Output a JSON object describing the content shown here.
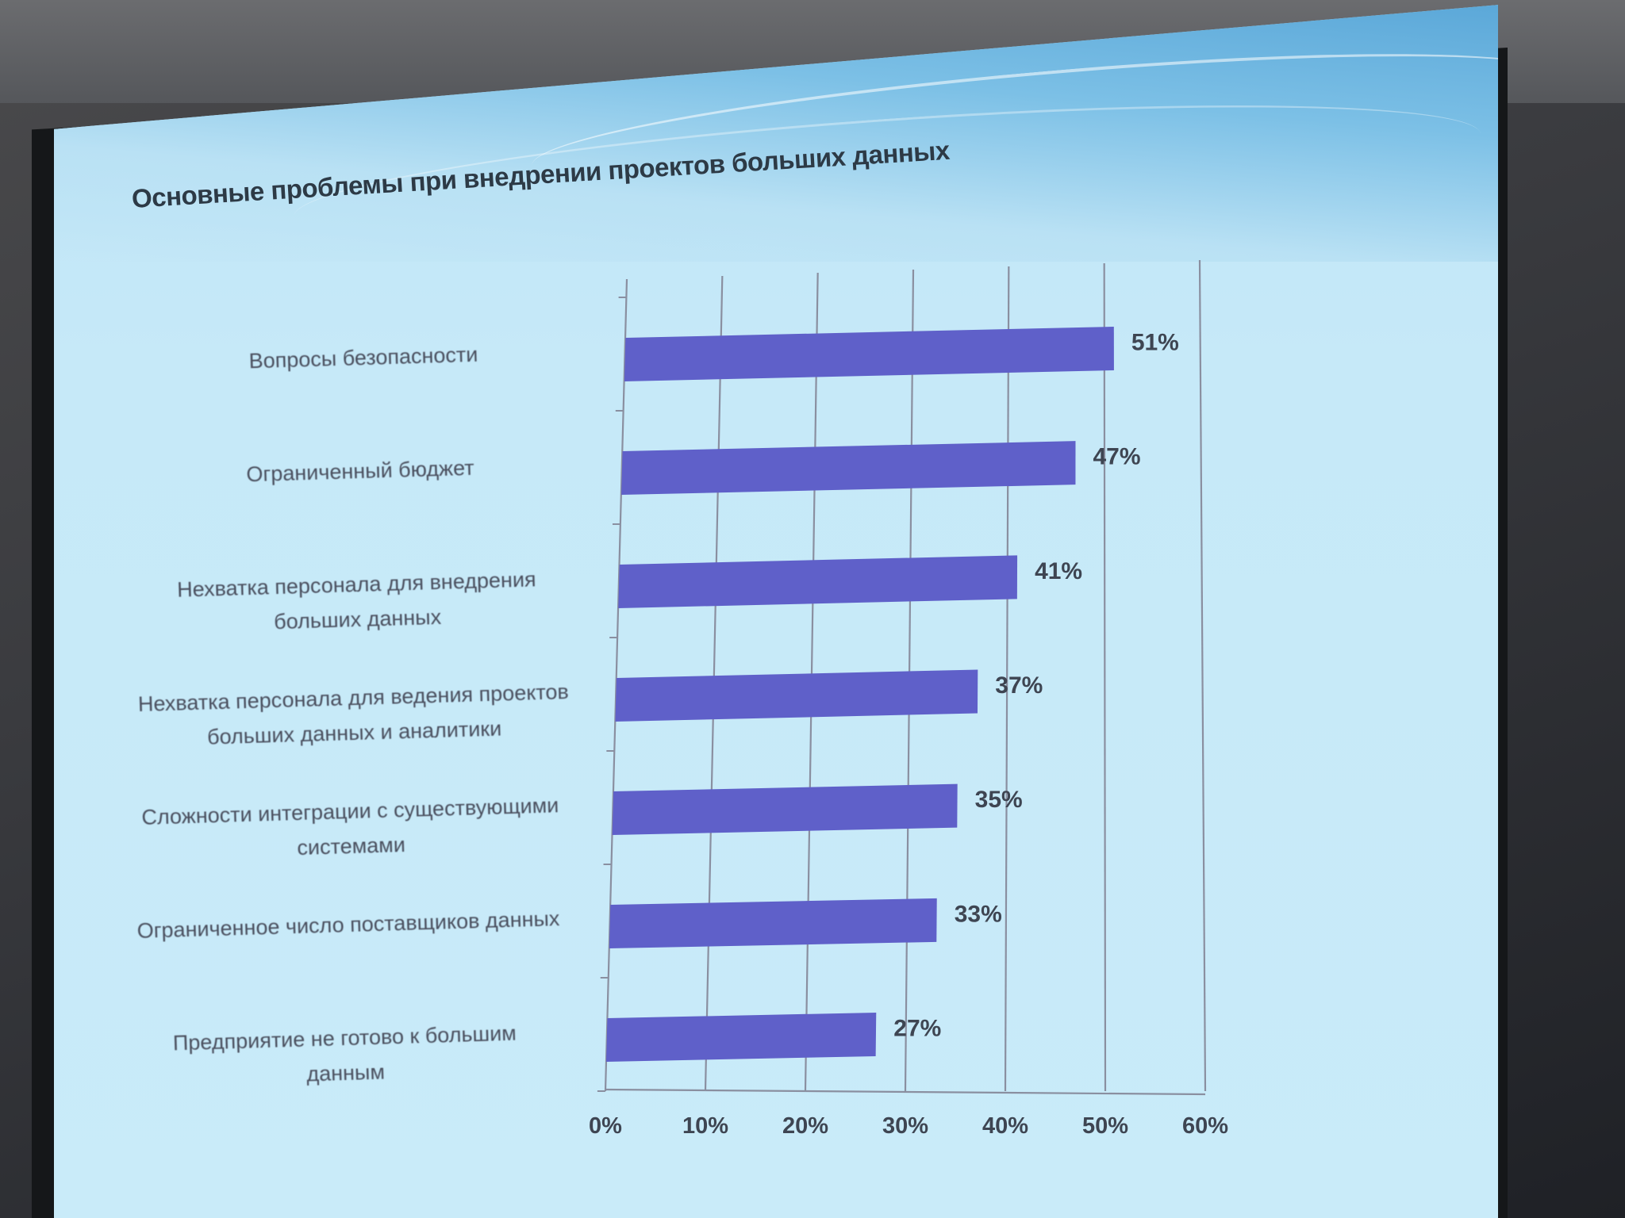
{
  "chart_data": {
    "type": "bar",
    "orientation": "horizontal",
    "title": "Основные проблемы при внедрении проектов больших данных",
    "categories": [
      "Вопросы безопасности",
      "Ограниченный бюджет",
      "Нехватка персонала для внедрения больших данных",
      "Нехватка персонала для ведения проектов больших данных и аналитики",
      "Сложности интеграции с существующими системами",
      "Ограниченное число поставщиков данных",
      "Предприятие не готово к большим данным"
    ],
    "category_lines": [
      [
        "Вопросы безопасности"
      ],
      [
        "Ограниченный бюджет"
      ],
      [
        "Нехватка персонала для внедрения",
        "больших данных"
      ],
      [
        "Нехватка персонала для ведения проектов",
        "больших данных и аналитики"
      ],
      [
        "Сложности интеграции с существующими",
        "системами"
      ],
      [
        "Ограниченное число поставщиков данных"
      ],
      [
        "Предприятие не готово к большим",
        "данным"
      ]
    ],
    "values": [
      51,
      47,
      41,
      37,
      35,
      33,
      27
    ],
    "value_labels": [
      "51%",
      "47%",
      "41%",
      "37%",
      "35%",
      "33%",
      "27%"
    ],
    "xlim": [
      0,
      60
    ],
    "xticks": [
      "0%",
      "10%",
      "20%",
      "30%",
      "40%",
      "50%",
      "60%"
    ],
    "grid": true,
    "bar_color": "#5f60c9"
  }
}
